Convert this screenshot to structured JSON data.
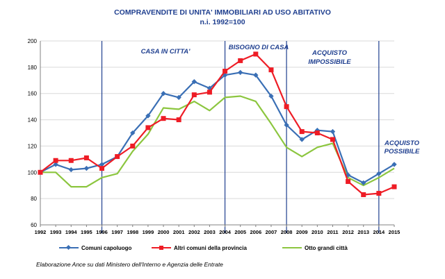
{
  "chart_data": {
    "type": "line",
    "title": "COMPRAVENDITE DI UNITA' IMMOBILIARI AD USO ABITATIVO",
    "subtitle": "n.i. 1992=100",
    "x": [
      "1992",
      "1993",
      "1994",
      "1995",
      "1996",
      "1997",
      "1998",
      "1999",
      "2000",
      "2001",
      "2002",
      "2003",
      "2004",
      "2005",
      "2006",
      "2007",
      "2008",
      "2009",
      "2010",
      "2011",
      "2012",
      "2013",
      "2014",
      "2015"
    ],
    "ylim": [
      60,
      200
    ],
    "yticks": [
      60,
      80,
      100,
      120,
      140,
      160,
      180,
      200
    ],
    "grid": true,
    "legend_position": "bottom",
    "series": [
      {
        "name": "Comuni capoluogo",
        "color": "#3a6fb5",
        "marker": "diamond",
        "values": [
          100,
          106,
          102,
          103,
          106,
          112,
          130,
          143,
          160,
          157,
          169,
          164,
          174,
          176,
          174,
          158,
          136,
          125,
          132,
          131,
          98,
          92,
          99,
          106
        ]
      },
      {
        "name": "Altri comuni della provincia",
        "color": "#ee1c25",
        "marker": "square",
        "values": [
          100,
          109,
          109,
          111,
          103,
          112,
          120,
          134,
          141,
          140,
          159,
          161,
          177,
          185,
          190,
          178,
          150,
          131,
          130,
          125,
          93,
          83,
          84,
          89
        ]
      },
      {
        "name": "Otto grandi città",
        "color": "#8cc63f",
        "marker": "none",
        "values": [
          100,
          100,
          89,
          89,
          96,
          99,
          116,
          129,
          149,
          148,
          154,
          147,
          157,
          158,
          154,
          137,
          119,
          112,
          119,
          122,
          96,
          90,
          96,
          103
        ]
      }
    ],
    "vertical_markers": [
      "1996",
      "2004",
      "2008",
      "2014"
    ],
    "annotations": [
      {
        "text": "CASA IN CITTA'"
      },
      {
        "text": "BISOGNO DI CASA"
      },
      {
        "text": "ACQUISTO"
      },
      {
        "text": "IMPOSSIBILE"
      },
      {
        "text": "ACQUISTO"
      },
      {
        "text": "POSSIBILE"
      }
    ],
    "colors": {
      "axis": "#808080",
      "grid": "#d9d9d9",
      "marker_line": "#1f3f8f",
      "title": "#1f3f8f"
    }
  },
  "source_note": "Elaborazione Ance su dati Ministero dell'Interno e Agenzia delle Entrate"
}
